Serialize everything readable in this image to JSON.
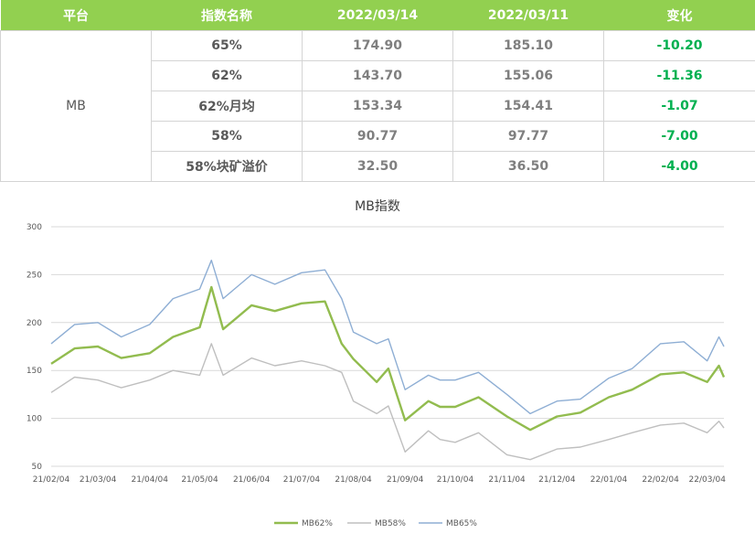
{
  "table": {
    "headers": [
      "平台",
      "指数名称",
      "2022/03/14",
      "2022/03/11",
      "变化"
    ],
    "platform": "MB",
    "rows": [
      {
        "name": "65%",
        "v1": "174.90",
        "v2": "185.10",
        "chg": "-10.20"
      },
      {
        "name": "62%",
        "v1": "143.70",
        "v2": "155.06",
        "chg": "-11.36"
      },
      {
        "name": "62%月均",
        "v1": "153.34",
        "v2": "154.41",
        "chg": "-1.07"
      },
      {
        "name": "58%",
        "v1": "90.77",
        "v2": "97.77",
        "chg": "-7.00"
      },
      {
        "name": "58%块矿溢价",
        "v1": "32.50",
        "v2": "36.50",
        "chg": "-4.00"
      }
    ],
    "header_color": "#92d050",
    "change_color": "#00b050"
  },
  "chart_data": {
    "type": "line",
    "title": "MB指数",
    "xlabel": "",
    "ylabel": "",
    "ylim": [
      50,
      300
    ],
    "yticks": [
      "300",
      "250",
      "200",
      "150",
      "100",
      "50"
    ],
    "xtick_labels": [
      "21/02/04",
      "21/03/04",
      "21/04/04",
      "21/05/04",
      "21/06/04",
      "21/07/04",
      "21/08/04",
      "21/09/04",
      "21/10/04",
      "21/11/04",
      "21/12/04",
      "22/01/04",
      "22/02/04",
      "22/03/04"
    ],
    "grid": true,
    "legend": "bottom",
    "x": [
      "21/02/04",
      "21/02/18",
      "21/03/04",
      "21/03/18",
      "21/04/04",
      "21/04/18",
      "21/05/04",
      "21/05/11",
      "21/05/18",
      "21/06/04",
      "21/06/18",
      "21/07/04",
      "21/07/18",
      "21/07/28",
      "21/08/04",
      "21/08/18",
      "21/08/25",
      "21/09/04",
      "21/09/18",
      "21/09/25",
      "21/10/04",
      "21/10/18",
      "21/11/04",
      "21/11/18",
      "21/12/04",
      "21/12/18",
      "22/01/04",
      "22/01/18",
      "22/02/04",
      "22/02/18",
      "22/03/04",
      "22/03/11",
      "22/03/14"
    ],
    "series": [
      {
        "name": "MB62%",
        "color": "#92bc4f",
        "values": [
          157,
          173,
          175,
          163,
          168,
          185,
          195,
          237,
          193,
          218,
          212,
          220,
          222,
          178,
          162,
          138,
          152,
          98,
          118,
          112,
          112,
          122,
          102,
          88,
          102,
          106,
          122,
          130,
          146,
          148,
          138,
          155,
          143
        ]
      },
      {
        "name": "MB58%",
        "color": "#bfbfbf",
        "values": [
          127,
          143,
          140,
          132,
          140,
          150,
          145,
          178,
          145,
          163,
          155,
          160,
          155,
          148,
          118,
          105,
          113,
          65,
          87,
          78,
          75,
          85,
          62,
          57,
          68,
          70,
          78,
          85,
          93,
          95,
          85,
          97,
          90
        ]
      },
      {
        "name": "MB65%",
        "color": "#8eaed4",
        "values": [
          178,
          198,
          200,
          185,
          198,
          225,
          235,
          265,
          225,
          250,
          240,
          252,
          255,
          225,
          190,
          178,
          183,
          130,
          145,
          140,
          140,
          148,
          125,
          105,
          118,
          120,
          142,
          152,
          178,
          180,
          160,
          185,
          175
        ]
      }
    ]
  }
}
